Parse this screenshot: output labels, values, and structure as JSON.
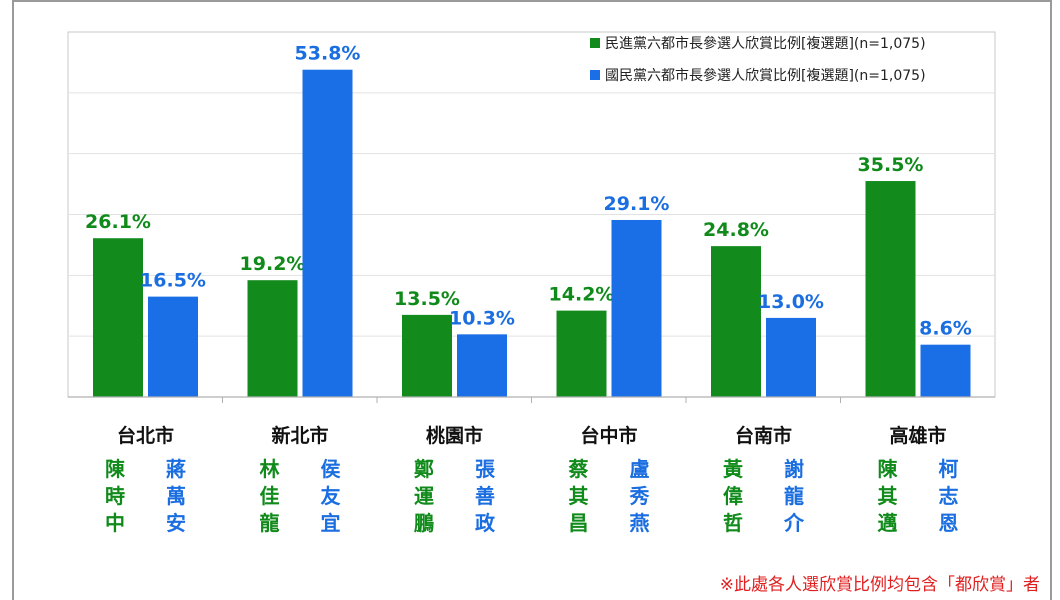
{
  "chart_data": {
    "type": "bar",
    "categories": [
      "台北市",
      "新北市",
      "桃園市",
      "台中市",
      "台南市",
      "高雄市"
    ],
    "series": [
      {
        "name": "民進黨六都市長參選人欣賞比例[複選題](n=1,075)",
        "values": [
          26.1,
          19.2,
          13.5,
          14.2,
          24.8,
          35.5
        ],
        "labels": [
          "26.1%",
          "19.2%",
          "13.5%",
          "14.2%",
          "24.8%",
          "35.5%"
        ],
        "candidates": [
          [
            "陳",
            "時",
            "中"
          ],
          [
            "林",
            "佳",
            "龍"
          ],
          [
            "鄭",
            "運",
            "鵬"
          ],
          [
            "蔡",
            "其",
            "昌"
          ],
          [
            "黃",
            "偉",
            "哲"
          ],
          [
            "陳",
            "其",
            "邁"
          ]
        ]
      },
      {
        "name": "國民黨六都市長參選人欣賞比例[複選題](n=1,075)",
        "values": [
          16.5,
          53.8,
          10.3,
          29.1,
          13.0,
          8.6
        ],
        "labels": [
          "16.5%",
          "53.8%",
          "10.3%",
          "29.1%",
          "13.0%",
          "8.6%"
        ],
        "candidates": [
          [
            "蔣",
            "萬",
            "安"
          ],
          [
            "侯",
            "友",
            "宜"
          ],
          [
            "張",
            "善",
            "政"
          ],
          [
            "盧",
            "秀",
            "燕"
          ],
          [
            "謝",
            "龍",
            "介"
          ],
          [
            "柯",
            "志",
            "恩"
          ]
        ]
      }
    ],
    "ylim": [
      0,
      60
    ],
    "grid": true,
    "legend_position": "top-right",
    "colors": {
      "dpp": "#138a1c",
      "kmt": "#1a6ee6",
      "dpp_text": "#108a1a",
      "kmt_text": "#1a6ee0"
    }
  },
  "footnote": "※此處各人選欣賞比例均包含「都欣賞」者"
}
